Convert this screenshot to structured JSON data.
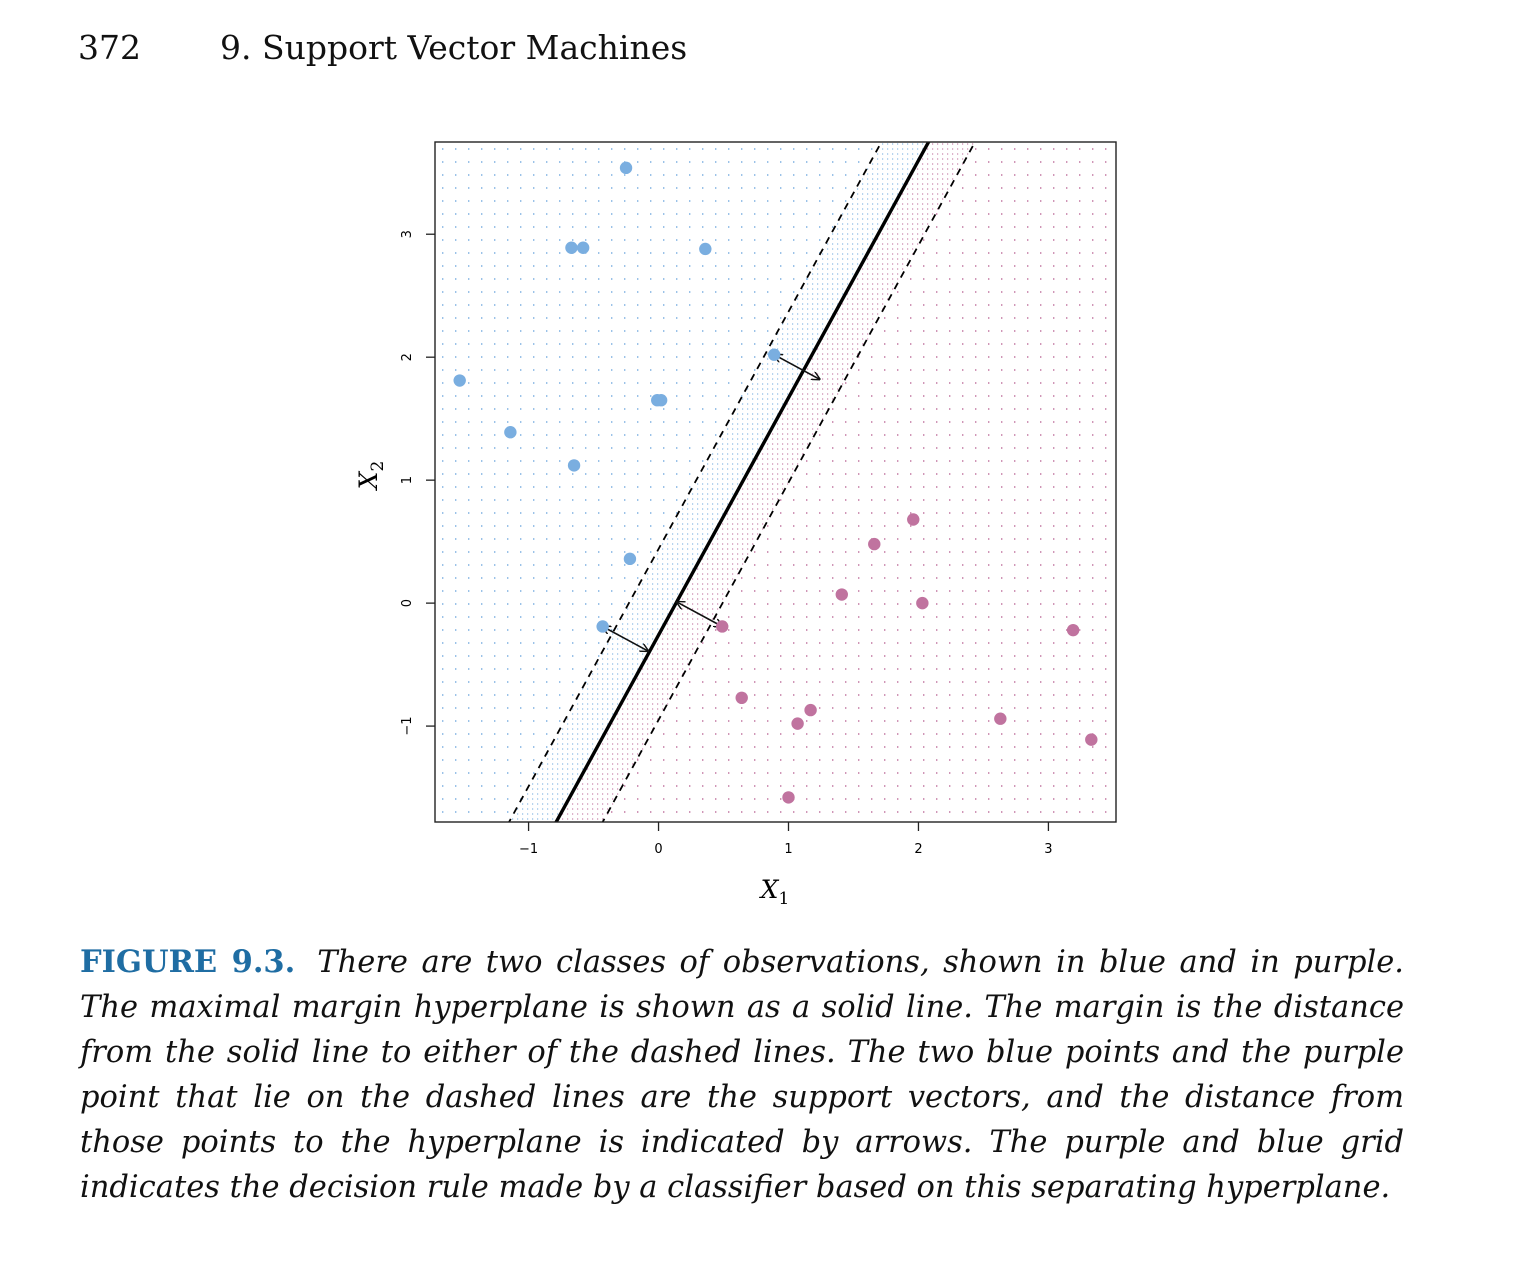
{
  "header": {
    "page_number": "372",
    "chapter_title": "9. Support Vector Machines"
  },
  "figure": {
    "label": "FIGURE 9.3.",
    "caption": "There are two classes of observations, shown in blue and in purple. The maximal margin hyperplane is shown as a solid line. The margin is the distance from the solid line to either of the dashed lines. The two blue points and the purple point that lie on the dashed lines are the support vectors, and the distance from those points to the hyperplane is indicated by arrows. The purple and blue grid indicates the decision rule made by a classifier based on this separating hyperplane."
  },
  "chart_data": {
    "type": "scatter",
    "title": "",
    "xlabel": "X",
    "xlabel_sub": "1",
    "ylabel": "X",
    "ylabel_sub": "2",
    "xlim": [
      -1.72,
      3.52
    ],
    "ylim": [
      -1.78,
      3.75
    ],
    "xticks": [
      -1,
      0,
      1,
      2,
      3
    ],
    "yticks": [
      -1,
      0,
      1,
      2,
      3
    ],
    "xtick_labels": [
      "−1",
      "0",
      "1",
      "2",
      "3"
    ],
    "ytick_labels": [
      "−1",
      "0",
      "1",
      "2",
      "3"
    ],
    "colors": {
      "blue": "#7aaee0",
      "purple": "#c0739f",
      "axis": "#111111"
    },
    "series": [
      {
        "class": "blue",
        "color": "#7aaee0",
        "x": [
          -0.25,
          -0.67,
          -0.58,
          0.36,
          0.89,
          -1.53,
          -0.01,
          0.02,
          -1.14,
          -0.65,
          -0.22,
          -0.43
        ],
        "y": [
          3.54,
          2.89,
          2.89,
          2.88,
          2.02,
          1.81,
          1.65,
          1.65,
          1.39,
          1.12,
          0.36,
          -0.19
        ]
      },
      {
        "class": "purple",
        "color": "#c0739f",
        "x": [
          1.96,
          1.66,
          1.41,
          2.03,
          0.49,
          3.19,
          0.64,
          1.17,
          1.07,
          2.63,
          3.33,
          1.0
        ],
        "y": [
          0.68,
          0.48,
          0.07,
          0.0,
          -0.19,
          -0.22,
          -0.77,
          -0.87,
          -0.98,
          -0.94,
          -1.11,
          -1.58
        ]
      }
    ],
    "hyperplane": {
      "slope": 1.93,
      "intercept": -0.26
    },
    "margin_lines": {
      "intercept_upper": 0.44,
      "intercept_lower": -0.95
    },
    "arrows": [
      {
        "from": [
          0.89,
          2.02
        ],
        "to": [
          1.24,
          1.82
        ]
      },
      {
        "from": [
          -0.43,
          -0.19
        ],
        "to": [
          -0.08,
          -0.39
        ]
      },
      {
        "from": [
          0.14,
          0.01
        ],
        "to": [
          0.49,
          -0.19
        ]
      }
    ]
  }
}
